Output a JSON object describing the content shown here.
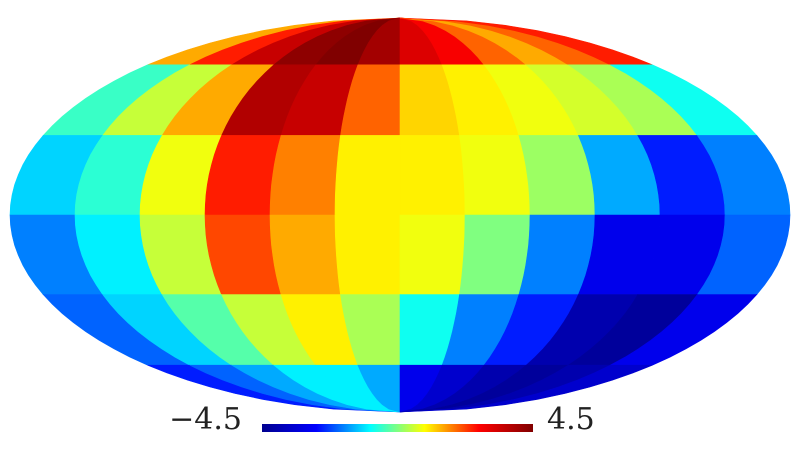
{
  "chart_data": {
    "type": "mollweide_map",
    "values": [
      [
        1.5,
        2.5,
        3.5,
        4.3,
        4.5,
        4,
        3.2,
        2.8,
        2,
        1.5,
        2,
        2.5
      ],
      [
        -0.5,
        0.5,
        1.5,
        3.8,
        3.5,
        2,
        1.2,
        1,
        0.8,
        0.6,
        0.3,
        -0.8
      ],
      [
        -1.2,
        -0.6,
        0.8,
        2.5,
        1.8,
        1,
        1,
        0.8,
        0.2,
        -1.5,
        -2.5,
        -1.8
      ],
      [
        -1.8,
        -1,
        0.5,
        2.2,
        1.5,
        1,
        0.8,
        0,
        -1.8,
        -3,
        -3,
        -2
      ],
      [
        -2,
        -1.2,
        -0.3,
        0.5,
        1,
        0.3,
        -0.8,
        -1.8,
        -2.5,
        -4,
        -4.3,
        -3
      ],
      [
        -2.5,
        -2,
        -1.5,
        -1,
        -1,
        -1.5,
        -3,
        -3.5,
        -4,
        -4.3,
        -4,
        -3.5
      ]
    ],
    "colormap": [
      "#00008f",
      "#0000ff",
      "#00ffff",
      "#ffff00",
      "#ff0000",
      "#800000"
    ],
    "clim": [
      -4.5,
      4.5
    ],
    "cticks": [
      {
        "value": -4.5,
        "label": "−4.5"
      },
      4.5
    ]
  }
}
